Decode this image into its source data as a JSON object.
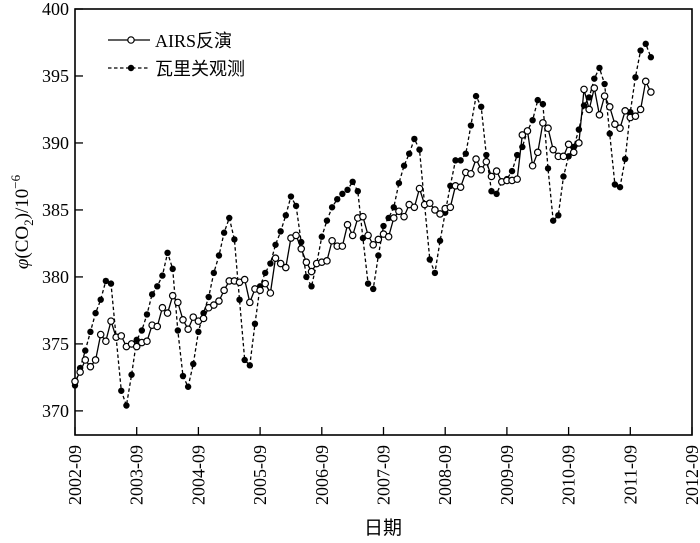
{
  "chart_data": {
    "type": "line",
    "title": "",
    "xlabel": "日期",
    "ylabel_parts": {
      "symbol": "φ",
      "open": "(CO",
      "sub": "2",
      "close": ")/10",
      "sup": "−6"
    },
    "x_start": "2002-09",
    "x_step": "1 month",
    "xlim_months_from_start": [
      0,
      120
    ],
    "xtick_labels": [
      "2002-09",
      "2003-09",
      "2004-09",
      "2005-09",
      "2006-09",
      "2007-09",
      "2008-09",
      "2009-09",
      "2010-09",
      "2011-09",
      "2012-09"
    ],
    "ylim": [
      368.2,
      400
    ],
    "yticks": [
      370,
      375,
      380,
      385,
      390,
      395,
      400
    ],
    "grid": false,
    "legend_position": "top-left",
    "series": [
      {
        "name": "AIRS反演",
        "style": "solid line, open circle markers",
        "color": "#000000",
        "values": [
          372.2,
          372.9,
          373.8,
          373.3,
          373.8,
          375.7,
          375.2,
          376.7,
          375.5,
          375.6,
          374.8,
          375.0,
          374.8,
          375.1,
          375.2,
          376.4,
          376.3,
          377.7,
          377.3,
          378.6,
          378.1,
          376.8,
          376.1,
          377.0,
          376.7,
          376.9,
          377.7,
          377.9,
          378.2,
          379.0,
          379.7,
          379.7,
          379.6,
          379.8,
          378.1,
          379.1,
          379.0,
          379.5,
          378.8,
          381.4,
          381.0,
          380.7,
          382.9,
          383.1,
          382.1,
          381.1,
          380.4,
          381.0,
          381.1,
          381.2,
          382.7,
          382.3,
          382.3,
          383.9,
          383.1,
          384.4,
          384.5,
          383.1,
          382.4,
          382.8,
          383.2,
          383.0,
          384.4,
          384.9,
          384.5,
          385.4,
          385.2,
          386.6,
          385.4,
          385.5,
          385.0,
          384.7,
          385.1,
          385.2,
          386.8,
          386.7,
          387.8,
          387.7,
          388.8,
          388.0,
          388.6,
          387.5,
          387.9,
          387.1,
          387.2,
          387.2,
          387.3,
          390.6,
          390.9,
          388.3,
          389.3,
          391.5,
          391.1,
          389.5,
          389.0,
          389.0,
          389.9,
          389.3,
          390.0,
          394.0,
          392.5,
          394.1,
          392.1,
          393.5,
          392.7,
          391.4,
          391.1,
          392.4,
          391.9,
          392.0,
          392.5,
          394.6,
          393.8
        ]
      },
      {
        "name": "瓦里关观测",
        "style": "dashed line, filled circle markers",
        "color": "#000000",
        "values": [
          371.9,
          373.2,
          374.5,
          375.9,
          377.3,
          378.3,
          379.7,
          379.5,
          375.5,
          371.5,
          370.4,
          372.7,
          375.3,
          376.0,
          377.2,
          378.7,
          379.3,
          380.1,
          381.8,
          380.6,
          376.0,
          372.6,
          371.8,
          373.5,
          375.9,
          377.3,
          378.5,
          380.3,
          381.6,
          383.3,
          384.4,
          382.8,
          378.3,
          373.8,
          373.4,
          376.5,
          379.3,
          380.3,
          381.0,
          382.4,
          383.4,
          384.6,
          386.0,
          385.3,
          382.6,
          380.0,
          379.3,
          381.0,
          383.0,
          384.2,
          385.2,
          385.8,
          386.2,
          386.5,
          387.1,
          386.4,
          382.9,
          379.5,
          379.1,
          381.6,
          383.8,
          384.4,
          385.2,
          387.0,
          388.3,
          389.2,
          390.3,
          389.5,
          385.4,
          381.3,
          380.3,
          382.7,
          384.8,
          386.8,
          388.7,
          388.7,
          389.2,
          391.3,
          393.5,
          392.7,
          389.1,
          386.4,
          386.2,
          387.1,
          387.3,
          387.9,
          389.1,
          389.7,
          390.9,
          391.7,
          393.2,
          392.9,
          388.1,
          384.2,
          384.6,
          387.5,
          389.0,
          389.7,
          391.0,
          392.8,
          393.4,
          394.8,
          395.6,
          394.4,
          390.7,
          386.9,
          386.7,
          388.8,
          392.3,
          394.9,
          396.9,
          397.4,
          396.4
        ]
      }
    ]
  }
}
